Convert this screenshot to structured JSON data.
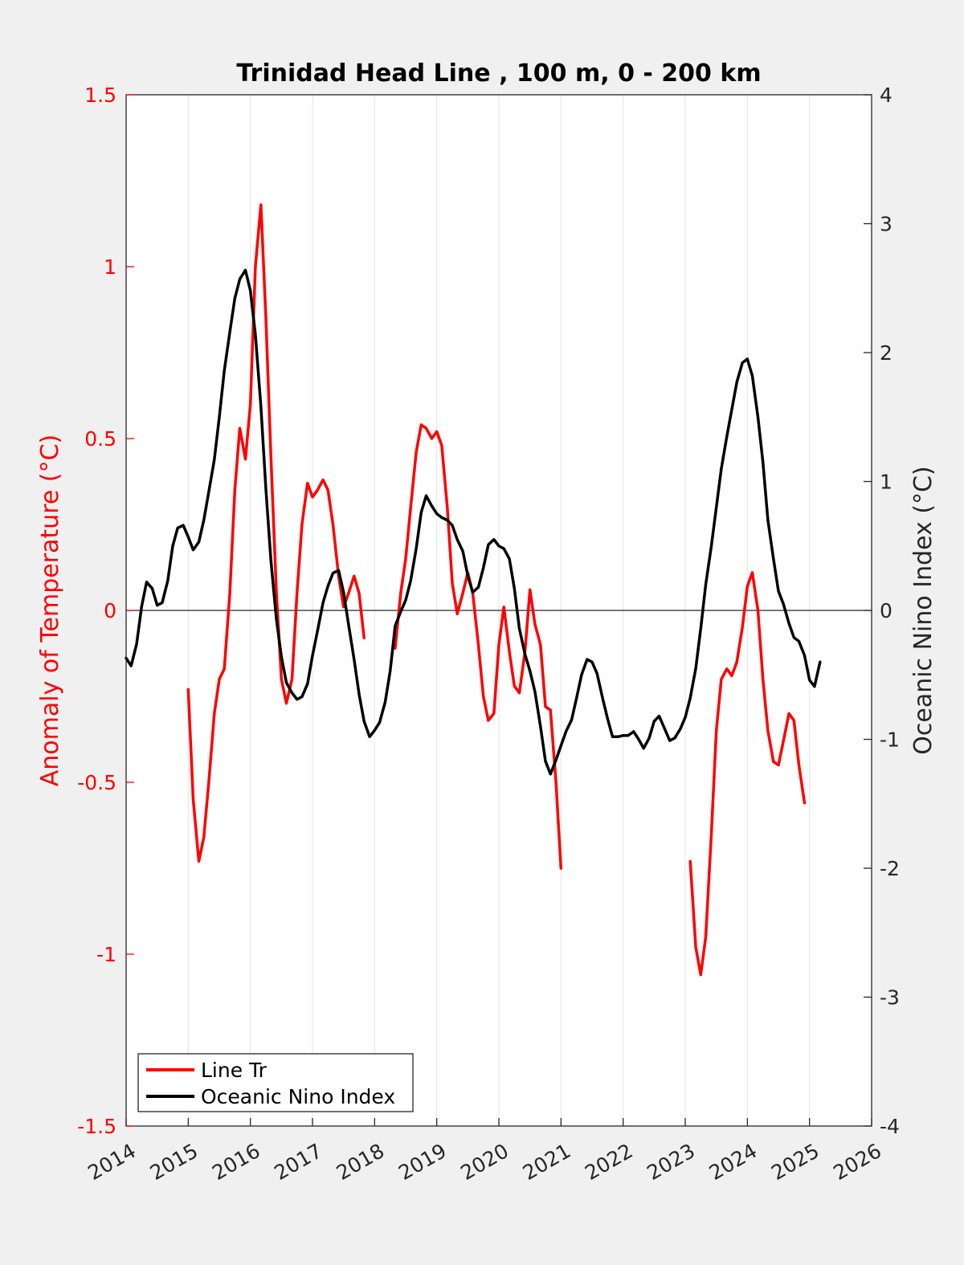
{
  "chart_data": {
    "type": "line",
    "title": "Trinidad Head Line , 100 m, 0 - 200 km",
    "ylabel_left": "Anomaly of Temperature (°C)",
    "ylabel_right": "Oceanic Nino Index (°C)",
    "xlabel": "",
    "xlim": [
      2014,
      2026
    ],
    "ylim_left": [
      -1.5,
      1.5
    ],
    "ylim_right": [
      -4,
      4
    ],
    "x_ticks": [
      "2014",
      "2015",
      "2016",
      "2017",
      "2018",
      "2019",
      "2020",
      "2021",
      "2022",
      "2023",
      "2024",
      "2025",
      "2026"
    ],
    "y_ticks_left": [
      "-1.5",
      "-1",
      "-0.5",
      "0",
      "0.5",
      "1",
      "1.5"
    ],
    "y_ticks_right": [
      "-4",
      "-3",
      "-2",
      "-1",
      "0",
      "1",
      "2",
      "3",
      "4"
    ],
    "grid": "vertical",
    "legend_position": "bottom-left",
    "colors": {
      "line_tr": "#ff0000",
      "oni": "#000000",
      "left_axis": "#ff0000",
      "right_axis": "#262626",
      "background": "#f0f0f0",
      "plot_bg": "#ffffff"
    },
    "series": [
      {
        "name": "Line Tr",
        "axis": "left",
        "segments": [
          [
            [
              2015.0,
              -0.23
            ],
            [
              2015.08,
              -0.55
            ],
            [
              2015.17,
              -0.73
            ],
            [
              2015.25,
              -0.66
            ],
            [
              2015.33,
              -0.5
            ],
            [
              2015.42,
              -0.3
            ],
            [
              2015.5,
              -0.2
            ],
            [
              2015.58,
              -0.17
            ],
            [
              2015.67,
              0.05
            ],
            [
              2015.75,
              0.35
            ],
            [
              2015.83,
              0.53
            ],
            [
              2015.92,
              0.44
            ],
            [
              2016.0,
              0.6
            ],
            [
              2016.08,
              1.0
            ],
            [
              2016.17,
              1.18
            ],
            [
              2016.25,
              0.85
            ],
            [
              2016.33,
              0.45
            ],
            [
              2016.42,
              0.05
            ],
            [
              2016.5,
              -0.2
            ],
            [
              2016.58,
              -0.27
            ],
            [
              2016.67,
              -0.2
            ],
            [
              2016.75,
              0.05
            ],
            [
              2016.83,
              0.25
            ],
            [
              2016.92,
              0.37
            ],
            [
              2017.0,
              0.33
            ],
            [
              2017.08,
              0.35
            ],
            [
              2017.17,
              0.38
            ],
            [
              2017.25,
              0.35
            ],
            [
              2017.33,
              0.25
            ],
            [
              2017.42,
              0.1
            ],
            [
              2017.5,
              0.01
            ],
            [
              2017.58,
              0.05
            ],
            [
              2017.67,
              0.1
            ],
            [
              2017.75,
              0.05
            ],
            [
              2017.83,
              -0.08
            ]
          ],
          [
            [
              2018.33,
              -0.11
            ],
            [
              2018.42,
              0.05
            ],
            [
              2018.5,
              0.15
            ],
            [
              2018.58,
              0.3
            ],
            [
              2018.67,
              0.46
            ],
            [
              2018.75,
              0.54
            ],
            [
              2018.83,
              0.53
            ],
            [
              2018.92,
              0.5
            ],
            [
              2019.0,
              0.52
            ],
            [
              2019.08,
              0.48
            ],
            [
              2019.17,
              0.3
            ],
            [
              2019.25,
              0.08
            ],
            [
              2019.33,
              -0.01
            ],
            [
              2019.42,
              0.05
            ],
            [
              2019.5,
              0.11
            ],
            [
              2019.58,
              0.05
            ],
            [
              2019.67,
              -0.1
            ],
            [
              2019.75,
              -0.25
            ],
            [
              2019.83,
              -0.32
            ],
            [
              2019.92,
              -0.3
            ],
            [
              2020.0,
              -0.1
            ],
            [
              2020.08,
              0.01
            ],
            [
              2020.17,
              -0.12
            ],
            [
              2020.25,
              -0.22
            ],
            [
              2020.33,
              -0.24
            ],
            [
              2020.42,
              -0.12
            ],
            [
              2020.5,
              0.06
            ],
            [
              2020.58,
              -0.04
            ],
            [
              2020.67,
              -0.1
            ],
            [
              2020.75,
              -0.28
            ],
            [
              2020.83,
              -0.29
            ],
            [
              2020.92,
              -0.5
            ],
            [
              2021.0,
              -0.75
            ]
          ],
          [
            [
              2023.08,
              -0.73
            ],
            [
              2023.17,
              -0.98
            ],
            [
              2023.25,
              -1.06
            ],
            [
              2023.33,
              -0.95
            ],
            [
              2023.42,
              -0.65
            ],
            [
              2023.5,
              -0.35
            ],
            [
              2023.58,
              -0.2
            ],
            [
              2023.67,
              -0.17
            ],
            [
              2023.75,
              -0.19
            ],
            [
              2023.83,
              -0.15
            ],
            [
              2023.92,
              -0.05
            ],
            [
              2024.0,
              0.07
            ],
            [
              2024.08,
              0.11
            ],
            [
              2024.17,
              0.0
            ],
            [
              2024.25,
              -0.2
            ],
            [
              2024.33,
              -0.35
            ],
            [
              2024.42,
              -0.44
            ],
            [
              2024.5,
              -0.45
            ],
            [
              2024.58,
              -0.38
            ],
            [
              2024.67,
              -0.3
            ],
            [
              2024.75,
              -0.32
            ],
            [
              2024.83,
              -0.45
            ],
            [
              2024.92,
              -0.56
            ]
          ]
        ]
      },
      {
        "name": "Oceanic Nino Index",
        "axis": "right",
        "segments": [
          [
            [
              2014.0,
              -0.37
            ],
            [
              2014.08,
              -0.43
            ],
            [
              2014.17,
              -0.26
            ],
            [
              2014.25,
              0.03
            ],
            [
              2014.33,
              0.22
            ],
            [
              2014.42,
              0.17
            ],
            [
              2014.5,
              0.04
            ],
            [
              2014.58,
              0.06
            ],
            [
              2014.67,
              0.23
            ],
            [
              2014.75,
              0.5
            ],
            [
              2014.83,
              0.64
            ],
            [
              2014.92,
              0.66
            ],
            [
              2015.0,
              0.57
            ],
            [
              2015.08,
              0.47
            ],
            [
              2015.17,
              0.53
            ],
            [
              2015.25,
              0.7
            ],
            [
              2015.33,
              0.92
            ],
            [
              2015.42,
              1.17
            ],
            [
              2015.5,
              1.5
            ],
            [
              2015.58,
              1.86
            ],
            [
              2015.67,
              2.16
            ],
            [
              2015.75,
              2.42
            ],
            [
              2015.83,
              2.57
            ],
            [
              2015.92,
              2.64
            ],
            [
              2016.0,
              2.48
            ],
            [
              2016.08,
              2.14
            ],
            [
              2016.17,
              1.58
            ],
            [
              2016.25,
              0.94
            ],
            [
              2016.33,
              0.39
            ],
            [
              2016.42,
              -0.07
            ],
            [
              2016.5,
              -0.36
            ],
            [
              2016.58,
              -0.56
            ],
            [
              2016.67,
              -0.64
            ],
            [
              2016.75,
              -0.69
            ],
            [
              2016.83,
              -0.67
            ],
            [
              2016.92,
              -0.57
            ],
            [
              2017.0,
              -0.35
            ],
            [
              2017.08,
              -0.16
            ],
            [
              2017.17,
              0.06
            ],
            [
              2017.25,
              0.19
            ],
            [
              2017.33,
              0.29
            ],
            [
              2017.42,
              0.31
            ],
            [
              2017.5,
              0.14
            ],
            [
              2017.58,
              -0.11
            ],
            [
              2017.67,
              -0.38
            ],
            [
              2017.75,
              -0.65
            ],
            [
              2017.83,
              -0.86
            ],
            [
              2017.92,
              -0.98
            ],
            [
              2018.0,
              -0.93
            ],
            [
              2018.08,
              -0.87
            ],
            [
              2018.17,
              -0.71
            ],
            [
              2018.25,
              -0.47
            ],
            [
              2018.33,
              -0.12
            ],
            [
              2018.42,
              -0.01
            ],
            [
              2018.5,
              0.08
            ],
            [
              2018.58,
              0.23
            ],
            [
              2018.67,
              0.48
            ],
            [
              2018.75,
              0.76
            ],
            [
              2018.83,
              0.89
            ],
            [
              2018.92,
              0.81
            ],
            [
              2019.0,
              0.75
            ],
            [
              2019.08,
              0.72
            ],
            [
              2019.17,
              0.7
            ],
            [
              2019.25,
              0.66
            ],
            [
              2019.33,
              0.55
            ],
            [
              2019.42,
              0.46
            ],
            [
              2019.5,
              0.27
            ],
            [
              2019.58,
              0.14
            ],
            [
              2019.67,
              0.18
            ],
            [
              2019.75,
              0.33
            ],
            [
              2019.83,
              0.51
            ],
            [
              2019.92,
              0.55
            ],
            [
              2020.0,
              0.5
            ],
            [
              2020.08,
              0.48
            ],
            [
              2020.17,
              0.4
            ],
            [
              2020.25,
              0.17
            ],
            [
              2020.33,
              -0.14
            ],
            [
              2020.42,
              -0.34
            ],
            [
              2020.5,
              -0.47
            ],
            [
              2020.58,
              -0.63
            ],
            [
              2020.67,
              -0.9
            ],
            [
              2020.75,
              -1.17
            ],
            [
              2020.83,
              -1.27
            ],
            [
              2020.92,
              -1.16
            ],
            [
              2021.0,
              -1.05
            ],
            [
              2021.08,
              -0.94
            ],
            [
              2021.17,
              -0.85
            ],
            [
              2021.25,
              -0.68
            ],
            [
              2021.33,
              -0.5
            ],
            [
              2021.42,
              -0.38
            ],
            [
              2021.5,
              -0.4
            ],
            [
              2021.58,
              -0.49
            ],
            [
              2021.67,
              -0.68
            ],
            [
              2021.75,
              -0.84
            ],
            [
              2021.83,
              -0.98
            ],
            [
              2021.92,
              -0.98
            ],
            [
              2022.0,
              -0.97
            ],
            [
              2022.08,
              -0.97
            ],
            [
              2022.17,
              -0.94
            ],
            [
              2022.25,
              -1.0
            ],
            [
              2022.33,
              -1.07
            ],
            [
              2022.42,
              -0.99
            ],
            [
              2022.5,
              -0.86
            ],
            [
              2022.58,
              -0.82
            ],
            [
              2022.67,
              -0.92
            ],
            [
              2022.75,
              -1.01
            ],
            [
              2022.83,
              -0.99
            ],
            [
              2022.92,
              -0.92
            ],
            [
              2023.0,
              -0.83
            ],
            [
              2023.08,
              -0.68
            ],
            [
              2023.17,
              -0.45
            ],
            [
              2023.25,
              -0.14
            ],
            [
              2023.33,
              0.2
            ],
            [
              2023.42,
              0.5
            ],
            [
              2023.5,
              0.8
            ],
            [
              2023.58,
              1.1
            ],
            [
              2023.67,
              1.35
            ],
            [
              2023.75,
              1.56
            ],
            [
              2023.83,
              1.77
            ],
            [
              2023.92,
              1.92
            ],
            [
              2024.0,
              1.95
            ],
            [
              2024.08,
              1.82
            ],
            [
              2024.17,
              1.5
            ],
            [
              2024.25,
              1.15
            ],
            [
              2024.33,
              0.7
            ],
            [
              2024.42,
              0.4
            ],
            [
              2024.5,
              0.15
            ],
            [
              2024.58,
              0.05
            ],
            [
              2024.67,
              -0.1
            ],
            [
              2024.75,
              -0.21
            ],
            [
              2024.83,
              -0.24
            ],
            [
              2024.92,
              -0.35
            ],
            [
              2025.0,
              -0.54
            ],
            [
              2025.08,
              -0.59
            ],
            [
              2025.17,
              -0.4
            ]
          ]
        ]
      }
    ]
  }
}
